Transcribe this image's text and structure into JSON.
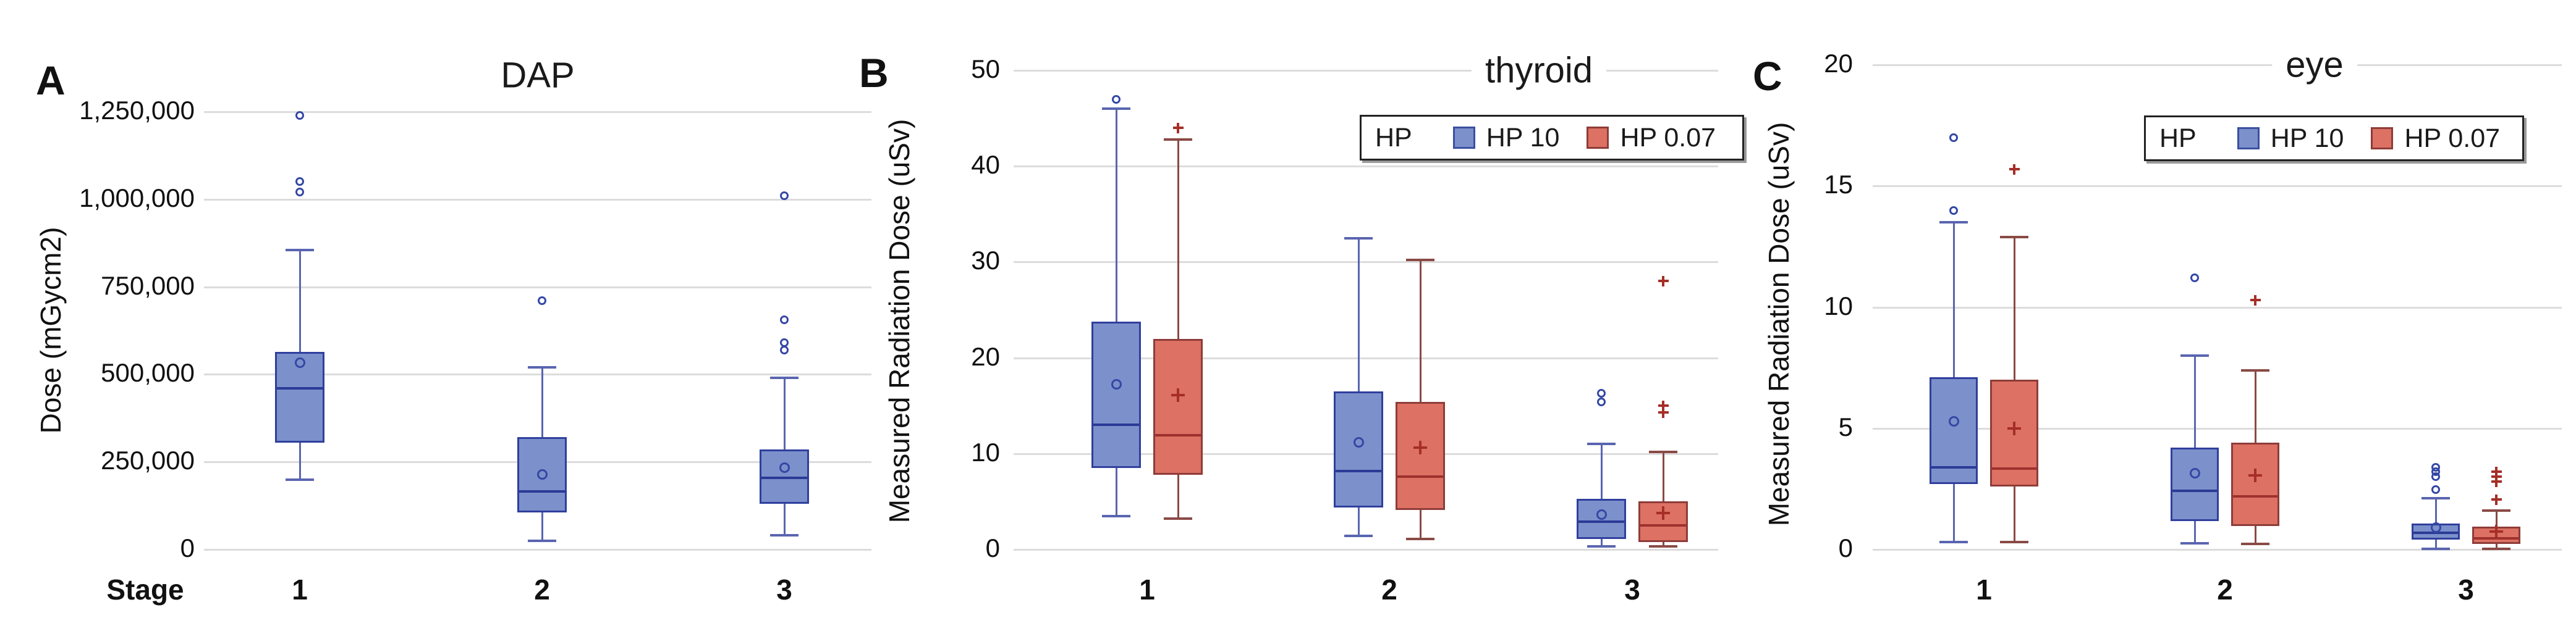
{
  "figure": {
    "panel_labels": [
      "A",
      "B",
      "C"
    ],
    "legend": {
      "title": "HP",
      "items": [
        {
          "label": "HP 10",
          "color": "#7c90cb",
          "border": "#3a4fa0"
        },
        {
          "label": "HP 0.07",
          "color": "#dc7164",
          "border": "#8e3c38"
        }
      ]
    },
    "colors": {
      "blue_fill": "#7c90cb",
      "blue_border": "#2f3f9e",
      "red_fill": "#dc7164",
      "red_border": "#8e3c38",
      "gridline": "#dcdcdc"
    }
  },
  "chart_data": [
    {
      "type": "boxplot",
      "title": "DAP",
      "ylabel": "Dose (mGycm2)",
      "xlabel": "Stage",
      "categories": [
        "1",
        "2",
        "3"
      ],
      "ylim": [
        0,
        1322000
      ],
      "grid": true,
      "yticks": [
        {
          "v": 0,
          "label": "0"
        },
        {
          "v": 250000,
          "label": "250,000"
        },
        {
          "v": 500000,
          "label": "500,000"
        },
        {
          "v": 750000,
          "label": "750,000"
        },
        {
          "v": 1000000,
          "label": "1,000,000"
        },
        {
          "v": 1250000,
          "label": "1,250,000"
        }
      ],
      "series": [
        {
          "name": "DAP",
          "style": "blue",
          "boxes": [
            {
              "low": 200000,
              "q1": 305000,
              "median": 460000,
              "q3": 565000,
              "high": 855000,
              "mean": 535000,
              "outliers": [
                1240000,
                1050000,
                1020000
              ]
            },
            {
              "low": 25000,
              "q1": 105000,
              "median": 165000,
              "q3": 320000,
              "high": 520000,
              "mean": 215000,
              "outliers": [
                710000
              ]
            },
            {
              "low": 40000,
              "q1": 130000,
              "median": 205000,
              "q3": 285000,
              "high": 490000,
              "mean": 235000,
              "outliers": [
                1010000,
                655000,
                590000,
                570000
              ]
            }
          ]
        }
      ]
    },
    {
      "type": "boxplot",
      "title": "thyroid",
      "ylabel": "Measured Radiation Dose (uSv)",
      "xlabel": "",
      "categories": [
        "1",
        "2",
        "3"
      ],
      "ylim": [
        0,
        50
      ],
      "grid": true,
      "legend_title": "HP",
      "yticks": [
        {
          "v": 0,
          "label": "0"
        },
        {
          "v": 10,
          "label": "10"
        },
        {
          "v": 20,
          "label": "20"
        },
        {
          "v": 30,
          "label": "30"
        },
        {
          "v": 40,
          "label": "40"
        },
        {
          "v": 50,
          "label": "50"
        }
      ],
      "series": [
        {
          "name": "HP 10",
          "style": "blue",
          "boxes": [
            {
              "low": 3.5,
              "q1": 8.5,
              "median": 13,
              "q3": 23.8,
              "high": 46,
              "mean": 17.3,
              "outliers": [
                47
              ]
            },
            {
              "low": 1.4,
              "q1": 4.4,
              "median": 8.2,
              "q3": 16.5,
              "high": 32.5,
              "mean": 11.2,
              "outliers": []
            },
            {
              "low": 0.3,
              "q1": 1.1,
              "median": 2.9,
              "q3": 5.3,
              "high": 11,
              "mean": 3.7,
              "outliers": [
                15.4,
                16.3
              ]
            }
          ]
        },
        {
          "name": "HP 0.07",
          "style": "red",
          "boxes": [
            {
              "low": 3.2,
              "q1": 7.8,
              "median": 11.9,
              "q3": 22,
              "high": 42.8,
              "mean": 16.1,
              "outliers": [
                44
              ]
            },
            {
              "low": 1.1,
              "q1": 4.1,
              "median": 7.6,
              "q3": 15.4,
              "high": 30.2,
              "mean": 10.6,
              "outliers": []
            },
            {
              "low": 0.3,
              "q1": 0.8,
              "median": 2.5,
              "q3": 5.0,
              "high": 10.2,
              "mean": 3.8,
              "outliers": [
                14.3,
                15,
                28
              ]
            }
          ]
        }
      ]
    },
    {
      "type": "boxplot",
      "title": "eye",
      "ylabel": "Measured Radiation Dose (uSv)",
      "xlabel": "",
      "categories": [
        "1",
        "2",
        "3"
      ],
      "ylim": [
        0,
        20
      ],
      "grid": true,
      "legend_title": "HP",
      "yticks": [
        {
          "v": 0,
          "label": "0"
        },
        {
          "v": 5,
          "label": "5"
        },
        {
          "v": 10,
          "label": "10"
        },
        {
          "v": 15,
          "label": "15"
        },
        {
          "v": 20,
          "label": "20"
        }
      ],
      "series": [
        {
          "name": "HP 10",
          "style": "blue",
          "boxes": [
            {
              "low": 0.3,
              "q1": 2.7,
              "median": 3.4,
              "q3": 7.1,
              "high": 13.5,
              "mean": 5.3,
              "outliers": [
                14,
                17
              ]
            },
            {
              "low": 0.25,
              "q1": 1.17,
              "median": 2.43,
              "q3": 4.2,
              "high": 8.0,
              "mean": 3.15,
              "outliers": [
                11.2
              ]
            },
            {
              "low": 0.02,
              "q1": 0.4,
              "median": 0.69,
              "q3": 1.07,
              "high": 2.11,
              "mean": 0.92,
              "outliers": [
                2.47,
                3.0,
                3.2,
                3.4
              ]
            }
          ]
        },
        {
          "name": "HP 0.07",
          "style": "red",
          "boxes": [
            {
              "low": 0.3,
              "q1": 2.6,
              "median": 3.35,
              "q3": 7.0,
              "high": 12.9,
              "mean": 5.0,
              "outliers": [
                15.7
              ]
            },
            {
              "low": 0.22,
              "q1": 0.97,
              "median": 2.2,
              "q3": 4.4,
              "high": 7.4,
              "mean": 3.05,
              "outliers": [
                10.3
              ]
            },
            {
              "low": 0.02,
              "q1": 0.23,
              "median": 0.46,
              "q3": 0.94,
              "high": 1.6,
              "mean": 0.74,
              "outliers": [
                2.06,
                2.8,
                3.0,
                3.2
              ]
            }
          ]
        }
      ]
    }
  ]
}
